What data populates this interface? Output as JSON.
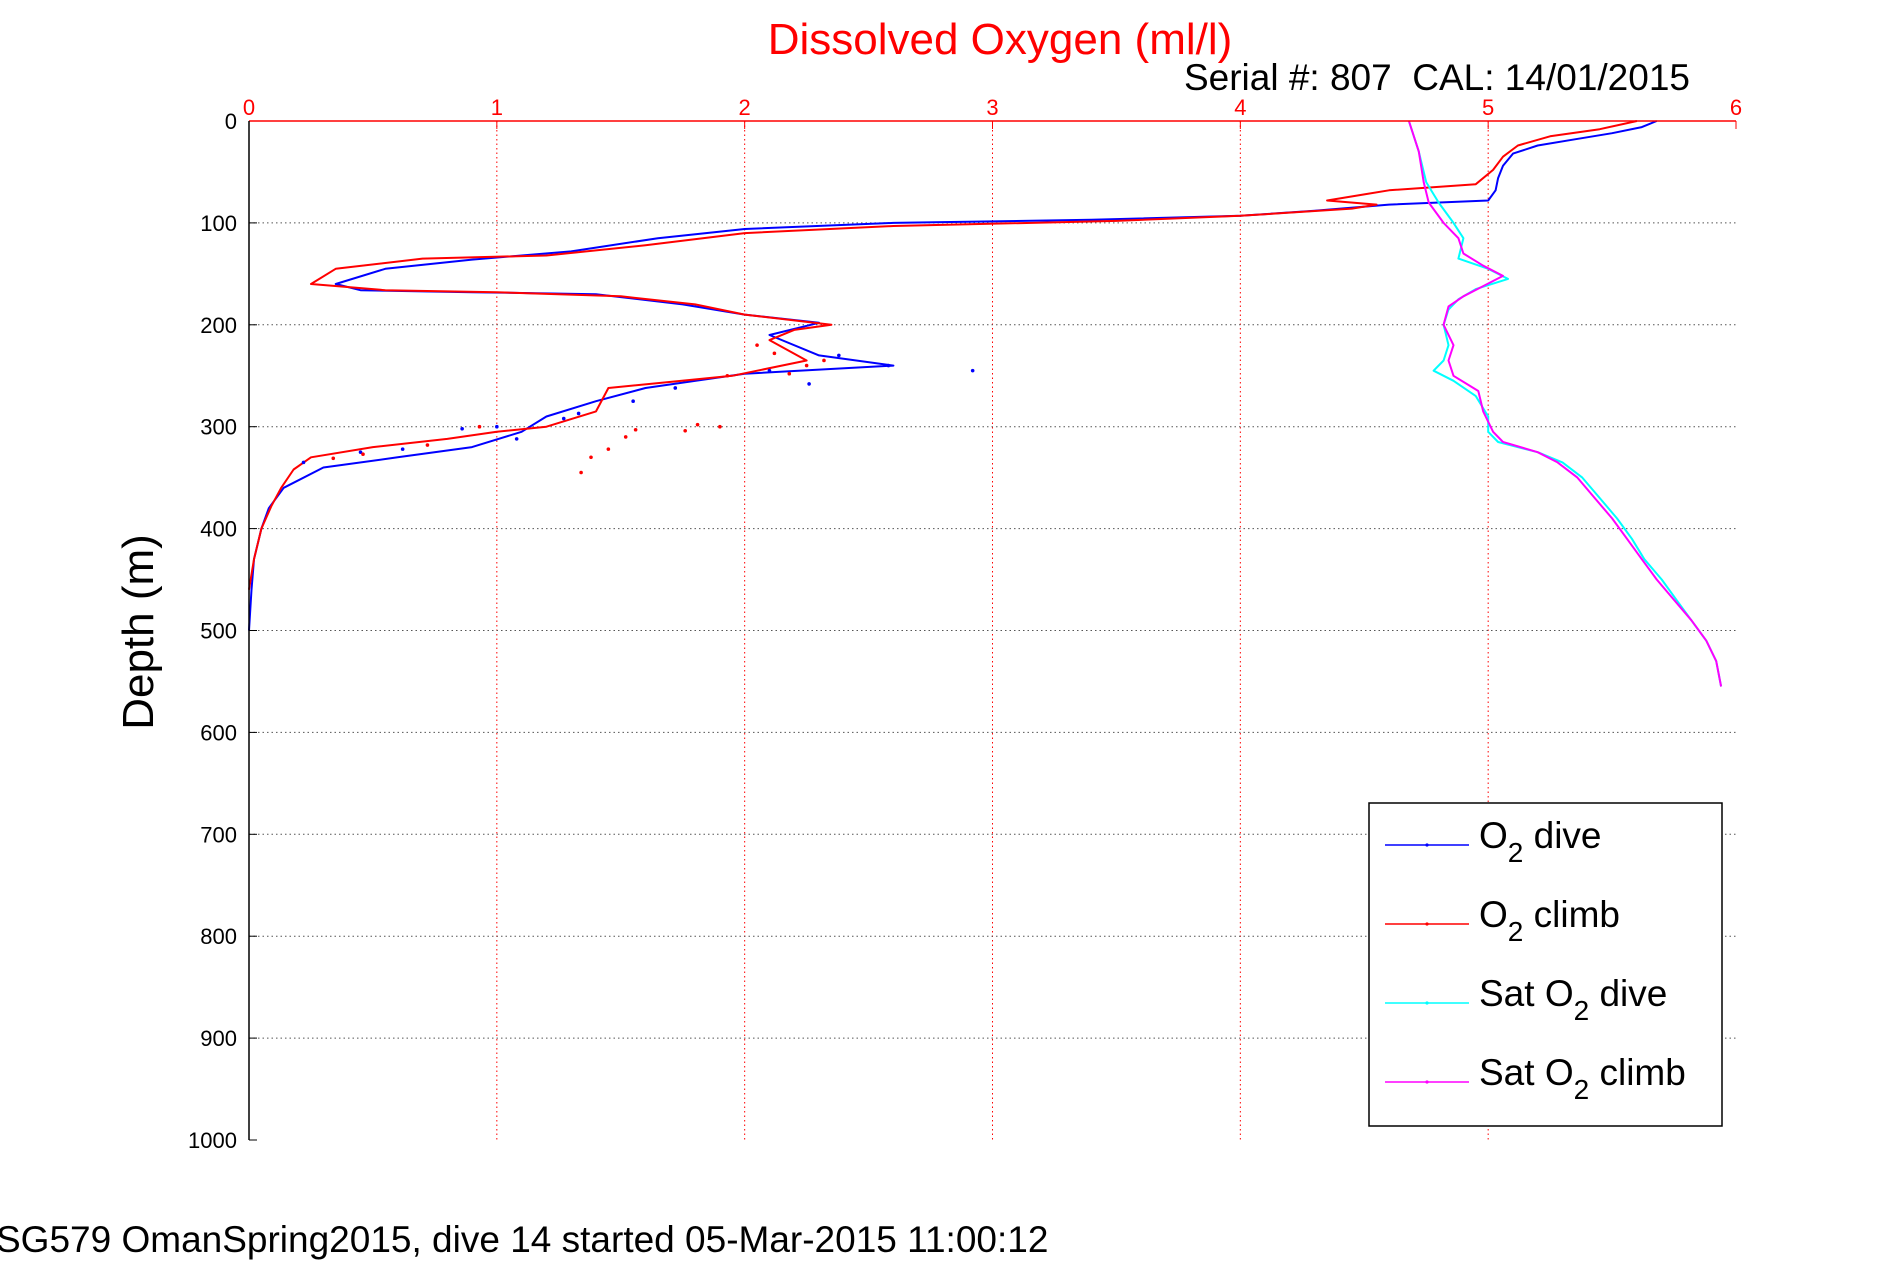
{
  "chart_data": {
    "type": "line",
    "title": "Dissolved Oxygen (ml/l)",
    "subtitle": "Serial #: 807  CAL: 14/01/2015",
    "footer": "SG579 OmanSpring2015, dive 14 started 05-Mar-2015 11:00:12",
    "xlabel": "",
    "ylabel": "Depth (m)",
    "xlim": [
      0,
      6
    ],
    "ylim": [
      0,
      1000
    ],
    "y_reversed": true,
    "x_axis_position": "top",
    "x_ticks": [
      "0",
      "1",
      "2",
      "3",
      "4",
      "5",
      "6"
    ],
    "y_ticks": [
      "0",
      "100",
      "200",
      "300",
      "400",
      "500",
      "600",
      "700",
      "800",
      "900",
      "1000"
    ],
    "grid": true,
    "legend_position": "bottom-right",
    "colors": {
      "o2_dive": "#0000ff",
      "o2_climb": "#ff0000",
      "sat_dive": "#00ffff",
      "sat_climb": "#ff00ff",
      "title": "#ff0000",
      "x_ticks": "#ff0000",
      "axes": "#000000"
    },
    "legend": [
      {
        "key": "o2_dive",
        "base": "O",
        "sub": "2",
        "rest": " dive"
      },
      {
        "key": "o2_climb",
        "base": "O",
        "sub": "2",
        "rest": " climb"
      },
      {
        "key": "sat_dive",
        "base": "Sat O",
        "sub": "2",
        "rest": " dive"
      },
      {
        "key": "sat_climb",
        "base": "Sat O",
        "sub": "2",
        "rest": " climb"
      }
    ],
    "series": [
      {
        "key": "o2_dive",
        "points": [
          [
            5.68,
            0
          ],
          [
            5.62,
            6
          ],
          [
            5.5,
            12
          ],
          [
            5.35,
            18
          ],
          [
            5.2,
            24
          ],
          [
            5.1,
            32
          ],
          [
            5.06,
            44
          ],
          [
            5.04,
            56
          ],
          [
            5.03,
            68
          ],
          [
            5.0,
            78
          ],
          [
            4.6,
            82
          ],
          [
            4.3,
            88
          ],
          [
            4.0,
            93
          ],
          [
            3.4,
            97
          ],
          [
            2.6,
            100
          ],
          [
            2.0,
            106
          ],
          [
            1.65,
            115
          ],
          [
            1.3,
            128
          ],
          [
            0.9,
            136
          ],
          [
            0.55,
            145
          ],
          [
            0.35,
            160
          ],
          [
            0.45,
            166
          ],
          [
            0.9,
            168
          ],
          [
            1.4,
            170
          ],
          [
            1.75,
            180
          ],
          [
            2.0,
            190
          ],
          [
            2.3,
            198
          ],
          [
            2.1,
            210
          ],
          [
            2.3,
            230
          ],
          [
            2.6,
            240
          ],
          [
            2.0,
            248
          ],
          [
            1.6,
            262
          ],
          [
            1.4,
            275
          ],
          [
            1.2,
            290
          ],
          [
            1.1,
            305
          ],
          [
            0.9,
            320
          ],
          [
            0.6,
            330
          ],
          [
            0.3,
            340
          ],
          [
            0.14,
            360
          ],
          [
            0.08,
            380
          ],
          [
            0.05,
            400
          ],
          [
            0.02,
            430
          ],
          [
            0.01,
            460
          ],
          [
            0.0,
            500
          ]
        ]
      },
      {
        "key": "o2_climb",
        "points": [
          [
            5.6,
            0
          ],
          [
            5.45,
            8
          ],
          [
            5.25,
            15
          ],
          [
            5.12,
            24
          ],
          [
            5.06,
            35
          ],
          [
            5.02,
            48
          ],
          [
            4.95,
            62
          ],
          [
            4.6,
            68
          ],
          [
            4.5,
            72
          ],
          [
            4.35,
            78
          ],
          [
            4.55,
            82
          ],
          [
            4.45,
            86
          ],
          [
            4.0,
            93
          ],
          [
            3.5,
            98
          ],
          [
            2.6,
            103
          ],
          [
            2.0,
            110
          ],
          [
            1.6,
            122
          ],
          [
            1.2,
            132
          ],
          [
            0.7,
            135
          ],
          [
            0.35,
            145
          ],
          [
            0.25,
            160
          ],
          [
            0.55,
            166
          ],
          [
            1.0,
            168
          ],
          [
            1.5,
            172
          ],
          [
            1.8,
            180
          ],
          [
            2.0,
            190
          ],
          [
            2.35,
            200
          ],
          [
            2.2,
            205
          ],
          [
            2.1,
            215
          ],
          [
            2.25,
            235
          ],
          [
            1.95,
            250
          ],
          [
            1.45,
            262
          ],
          [
            1.4,
            285
          ],
          [
            1.2,
            300
          ],
          [
            1.0,
            305
          ],
          [
            0.8,
            312
          ],
          [
            0.5,
            320
          ],
          [
            0.25,
            330
          ],
          [
            0.18,
            342
          ],
          [
            0.13,
            360
          ],
          [
            0.09,
            378
          ],
          [
            0.05,
            400
          ],
          [
            0.02,
            430
          ],
          [
            0.0,
            460
          ]
        ]
      },
      {
        "key": "sat_dive",
        "points": [
          [
            4.68,
            0
          ],
          [
            4.72,
            30
          ],
          [
            4.75,
            60
          ],
          [
            4.8,
            80
          ],
          [
            4.86,
            100
          ],
          [
            4.9,
            115
          ],
          [
            4.88,
            135
          ],
          [
            5.0,
            145
          ],
          [
            5.08,
            155
          ],
          [
            4.95,
            165
          ],
          [
            4.88,
            175
          ],
          [
            4.84,
            185
          ],
          [
            4.82,
            200
          ],
          [
            4.84,
            220
          ],
          [
            4.82,
            235
          ],
          [
            4.78,
            245
          ],
          [
            4.86,
            255
          ],
          [
            4.95,
            270
          ],
          [
            5.0,
            290
          ],
          [
            5.0,
            305
          ],
          [
            5.04,
            315
          ],
          [
            5.2,
            325
          ],
          [
            5.3,
            335
          ],
          [
            5.38,
            350
          ],
          [
            5.45,
            370
          ],
          [
            5.52,
            390
          ],
          [
            5.58,
            410
          ],
          [
            5.63,
            430
          ],
          [
            5.7,
            450
          ],
          [
            5.76,
            470
          ],
          [
            5.82,
            490
          ],
          [
            5.88,
            510
          ],
          [
            5.92,
            530
          ],
          [
            5.94,
            555
          ]
        ]
      },
      {
        "key": "sat_climb",
        "points": [
          [
            4.68,
            0
          ],
          [
            4.72,
            30
          ],
          [
            4.74,
            60
          ],
          [
            4.76,
            80
          ],
          [
            4.82,
            100
          ],
          [
            4.88,
            115
          ],
          [
            4.9,
            130
          ],
          [
            4.98,
            142
          ],
          [
            5.06,
            152
          ],
          [
            4.98,
            162
          ],
          [
            4.9,
            172
          ],
          [
            4.84,
            182
          ],
          [
            4.82,
            200
          ],
          [
            4.86,
            220
          ],
          [
            4.84,
            235
          ],
          [
            4.86,
            250
          ],
          [
            4.96,
            265
          ],
          [
            4.98,
            285
          ],
          [
            5.02,
            305
          ],
          [
            5.06,
            315
          ],
          [
            5.2,
            325
          ],
          [
            5.28,
            335
          ],
          [
            5.36,
            350
          ],
          [
            5.43,
            370
          ],
          [
            5.5,
            390
          ],
          [
            5.56,
            410
          ],
          [
            5.62,
            430
          ],
          [
            5.68,
            450
          ],
          [
            5.75,
            470
          ],
          [
            5.82,
            490
          ],
          [
            5.88,
            510
          ],
          [
            5.92,
            530
          ],
          [
            5.94,
            555
          ]
        ]
      }
    ],
    "scatter": {
      "o2_dive": [
        [
          2.92,
          245
        ],
        [
          2.58,
          240
        ],
        [
          1.72,
          262
        ],
        [
          1.08,
          312
        ],
        [
          1.33,
          287
        ],
        [
          1.27,
          292
        ],
        [
          1.55,
          275
        ],
        [
          2.38,
          230
        ],
        [
          2.26,
          258
        ],
        [
          2.1,
          245
        ],
        [
          0.62,
          322
        ],
        [
          1.0,
          300
        ],
        [
          0.86,
          302
        ],
        [
          0.45,
          325
        ],
        [
          0.22,
          335
        ]
      ],
      "o2_climb": [
        [
          1.93,
          250
        ],
        [
          1.9,
          300
        ],
        [
          1.81,
          298
        ],
        [
          1.76,
          304
        ],
        [
          1.56,
          303
        ],
        [
          1.52,
          310
        ],
        [
          1.45,
          322
        ],
        [
          1.38,
          330
        ],
        [
          1.34,
          345
        ],
        [
          2.05,
          220
        ],
        [
          2.12,
          228
        ],
        [
          2.25,
          240
        ],
        [
          2.18,
          248
        ],
        [
          2.32,
          235
        ],
        [
          0.93,
          300
        ],
        [
          0.72,
          318
        ],
        [
          0.34,
          331
        ],
        [
          0.46,
          327
        ]
      ]
    }
  }
}
